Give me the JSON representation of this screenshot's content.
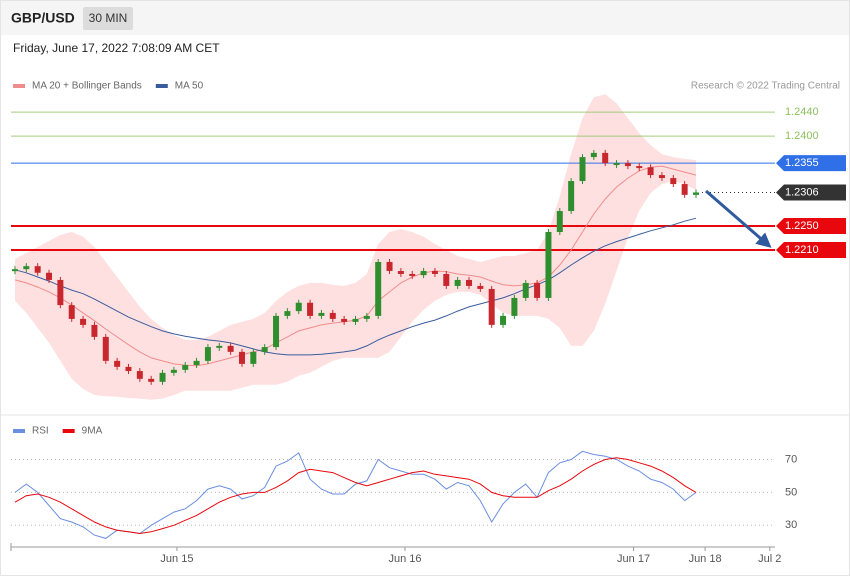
{
  "header": {
    "symbol": "GBP/USD",
    "interval": "30 MIN",
    "timestamp": "Friday, June 17, 2022 7:08:09 AM CET"
  },
  "copyright": "Research © 2022 Trading Central",
  "chart_data": [
    {
      "type": "candlestick",
      "values": [
        1.2178,
        1.2183,
        1.2172,
        1.216,
        1.2118,
        1.2095,
        1.2085,
        1.2065,
        1.2025,
        1.2015,
        1.2008,
        1.1995,
        1.199,
        1.2005,
        1.201,
        1.2018,
        1.2025,
        1.2048,
        1.205,
        1.204,
        1.202,
        1.204,
        1.2048,
        1.21,
        1.2108,
        1.2122,
        1.21,
        1.2105,
        1.2095,
        1.209,
        1.2095,
        1.21,
        1.219,
        1.2175,
        1.217,
        1.2168,
        1.2175,
        1.217,
        1.215,
        1.216,
        1.215,
        1.2145,
        1.2085,
        1.21,
        1.213,
        1.2155,
        1.213,
        1.224,
        1.2275,
        1.2325,
        1.2365,
        1.2372,
        1.2355,
        1.2355,
        1.235,
        1.2348,
        1.2335,
        1.233,
        1.232,
        1.2302,
        1.2306
      ],
      "up_color": "#2f8f2f",
      "down_color": "#c8282d",
      "band": {
        "color": "#ffd6d6",
        "upper": [
          1.2195,
          1.2205,
          1.2215,
          1.2225,
          1.2235,
          1.224,
          1.2232,
          1.2215,
          1.219,
          1.2165,
          1.214,
          1.2115,
          1.2095,
          1.208,
          1.2068,
          1.206,
          1.206,
          1.2065,
          1.2075,
          1.2085,
          1.209,
          1.2095,
          1.2105,
          1.2125,
          1.214,
          1.215,
          1.2155,
          1.2155,
          1.2152,
          1.215,
          1.2155,
          1.217,
          1.222,
          1.224,
          1.2245,
          1.224,
          1.2232,
          1.222,
          1.221,
          1.22,
          1.2195,
          1.219,
          1.2195,
          1.22,
          1.22,
          1.2205,
          1.221,
          1.224,
          1.23,
          1.237,
          1.243,
          1.2465,
          1.247,
          1.2455,
          1.243,
          1.2405,
          1.2385,
          1.237,
          1.2365,
          1.2362,
          1.236
        ],
        "lower": [
          1.2125,
          1.2105,
          1.208,
          1.2055,
          1.2025,
          1.1995,
          1.1978,
          1.1968,
          1.1966,
          1.1965,
          1.1963,
          1.1962,
          1.196,
          1.1962,
          1.1968,
          1.1975,
          1.1975,
          1.1975,
          1.1975,
          1.1975,
          1.198,
          1.1985,
          1.1985,
          1.1985,
          1.199,
          1.2,
          1.2005,
          1.2015,
          1.2025,
          1.203,
          1.203,
          1.203,
          1.203,
          1.204,
          1.2065,
          1.209,
          1.211,
          1.2125,
          1.2135,
          1.214,
          1.214,
          1.2135,
          1.212,
          1.2105,
          1.21,
          1.21,
          1.21,
          1.2095,
          1.208,
          1.205,
          1.205,
          1.2075,
          1.212,
          1.2175,
          1.223,
          1.2275,
          1.2305,
          1.232,
          1.2325,
          1.232,
          1.231
        ]
      },
      "series": [
        {
          "name": "MA 20 + Bollinger Bands",
          "color": "#f08c8c",
          "values": [
            1.216,
            1.2155,
            1.2148,
            1.214,
            1.213,
            1.2118,
            1.2105,
            1.2092,
            1.2078,
            1.2065,
            1.2052,
            1.204,
            1.203,
            1.2025,
            1.202,
            1.2018,
            1.2017,
            1.202,
            1.2025,
            1.203,
            1.2035,
            1.204,
            1.2045,
            1.2055,
            1.2065,
            1.2075,
            1.208,
            1.2085,
            1.2088,
            1.209,
            1.2093,
            1.21,
            1.2125,
            1.214,
            1.2155,
            1.2165,
            1.2172,
            1.2175,
            1.2174,
            1.217,
            1.2168,
            1.2165,
            1.2158,
            1.2152,
            1.215,
            1.2152,
            1.2155,
            1.2165,
            1.2185,
            1.221,
            1.224,
            1.227,
            1.2295,
            1.2315,
            1.233,
            1.2342,
            1.2348,
            1.235,
            1.2345,
            1.234,
            1.2335
          ]
        },
        {
          "name": "MA 50",
          "color": "#3a5c9e",
          "values": [
            1.2177,
            1.2172,
            1.2165,
            1.2158,
            1.215,
            1.2143,
            1.2137,
            1.2128,
            1.2118,
            1.2108,
            1.2098,
            1.209,
            1.2082,
            1.2075,
            1.207,
            1.2066,
            1.2063,
            1.206,
            1.2058,
            1.2055,
            1.205,
            1.2045,
            1.204,
            1.2037,
            1.2035,
            1.2035,
            1.2035,
            1.2036,
            1.2038,
            1.204,
            1.2043,
            1.205,
            1.206,
            1.2068,
            1.2075,
            1.2082,
            1.2088,
            1.2093,
            1.21,
            1.2108,
            1.2115,
            1.212,
            1.2125,
            1.213,
            1.2137,
            1.2145,
            1.2152,
            1.216,
            1.2172,
            1.2185,
            1.2197,
            1.2208,
            1.2217,
            1.2224,
            1.223,
            1.2236,
            1.2242,
            1.2247,
            1.2252,
            1.2258,
            1.2263
          ]
        }
      ],
      "levels": [
        {
          "value": 1.244,
          "label": "1.2440",
          "color": "#8cc060",
          "boxed": false
        },
        {
          "value": 1.24,
          "label": "1.2400",
          "color": "#8cc060",
          "boxed": false
        },
        {
          "value": 1.2355,
          "label": "1.2355",
          "color": "#2f6fe8",
          "boxed": true
        },
        {
          "value": 1.2306,
          "label": "1.2306",
          "color": "#333333",
          "boxed": true,
          "dotted": true
        },
        {
          "value": 1.225,
          "label": "1.2250",
          "color": "#e8070d",
          "boxed": true
        },
        {
          "value": 1.221,
          "label": "1.2210",
          "color": "#e8070d",
          "boxed": true
        }
      ],
      "xlim": [
        -0.35,
        66.96
      ],
      "ylim": [
        1.1943,
        1.2527
      ]
    },
    {
      "type": "line",
      "series": [
        {
          "name": "RSI",
          "color": "#6a8ee0",
          "values": [
            50,
            55,
            50,
            42,
            34,
            32,
            29,
            24,
            22,
            27,
            26,
            25,
            30,
            34,
            38,
            40,
            45,
            52,
            54,
            52,
            46,
            48,
            53,
            66,
            69,
            74,
            58,
            52,
            49,
            49,
            55,
            57,
            70,
            65,
            63,
            61,
            61,
            58,
            52,
            56,
            54,
            45,
            32,
            43,
            50,
            55,
            47,
            62,
            68,
            70,
            75,
            73,
            72,
            70,
            66,
            63,
            58,
            56,
            52,
            45,
            50
          ]
        },
        {
          "name": "9MA",
          "color": "#e8070d",
          "values": [
            44,
            48,
            49,
            47,
            44,
            40,
            36,
            32,
            29,
            27,
            26,
            25,
            26,
            28,
            30,
            33,
            36,
            40,
            44,
            47,
            49,
            50,
            50,
            53,
            57,
            62,
            64,
            63,
            62,
            59,
            56,
            54,
            56,
            58,
            60,
            62,
            63,
            61,
            60,
            59,
            58,
            55,
            50,
            48,
            47,
            47,
            47,
            51,
            54,
            58,
            63,
            67,
            70,
            71,
            70,
            68,
            66,
            63,
            59,
            54,
            50
          ]
        }
      ],
      "xlim": [
        -0.35,
        66.96
      ],
      "ylim": [
        18,
        94
      ],
      "yticks": [
        30,
        50,
        70
      ],
      "xticks": [
        {
          "value": 14.27,
          "label": "Jun 15"
        },
        {
          "value": 34.36,
          "label": "Jun 16"
        },
        {
          "value": 54.5,
          "label": "Jun 17"
        },
        {
          "value": 60.8,
          "label": "Jun 18"
        },
        {
          "value": 66.5,
          "label": "Jul 2"
        }
      ]
    }
  ]
}
